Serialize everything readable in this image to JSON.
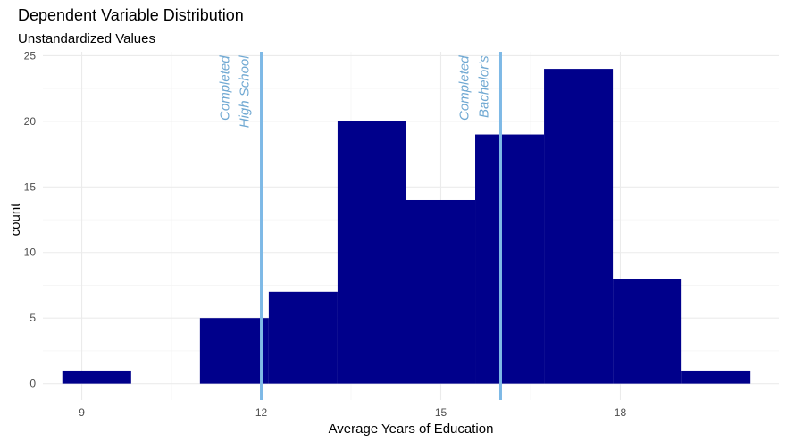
{
  "chart_data": {
    "type": "bar",
    "title": "Dependent Variable Distribution",
    "subtitle": "Unstandardized Values",
    "xlabel": "Average Years of Education",
    "ylabel": "count",
    "xlim": [
      8.35,
      20.65
    ],
    "ylim": [
      -1.25,
      25.3
    ],
    "x_ticks": [
      9,
      12,
      15,
      18
    ],
    "y_ticks": [
      0,
      5,
      10,
      15,
      20,
      25
    ],
    "grid": true,
    "bin_width": 1.15,
    "bins": [
      {
        "center": 9.25,
        "count": 1
      },
      {
        "center": 10.4,
        "count": 0
      },
      {
        "center": 11.55,
        "count": 5
      },
      {
        "center": 12.7,
        "count": 7
      },
      {
        "center": 13.85,
        "count": 20
      },
      {
        "center": 15.0,
        "count": 14
      },
      {
        "center": 16.15,
        "count": 19
      },
      {
        "center": 17.3,
        "count": 24
      },
      {
        "center": 18.45,
        "count": 8
      },
      {
        "center": 19.6,
        "count": 1
      }
    ],
    "bar_color": "#00008B",
    "reference_lines": [
      {
        "x": 12,
        "color": "#7EB9E6",
        "label_line1": "Completed",
        "label_line2": "High School"
      },
      {
        "x": 16,
        "color": "#7EB9E6",
        "label_line1": "Completed",
        "label_line2": "Bachelor's"
      }
    ],
    "annotation_color": "#6FA8D2"
  }
}
